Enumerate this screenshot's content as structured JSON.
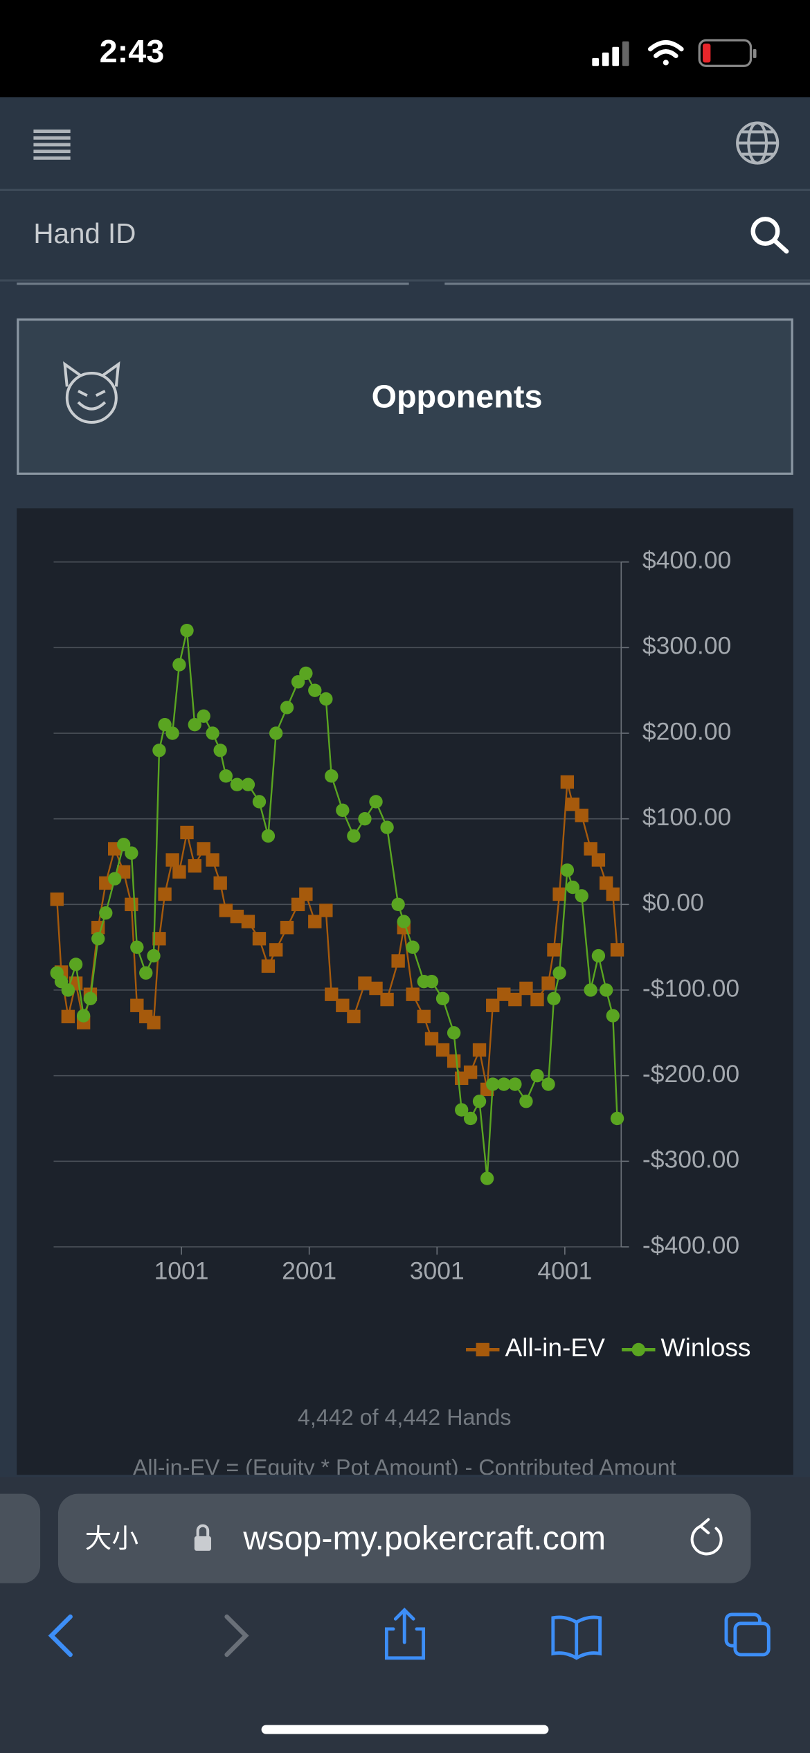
{
  "status": {
    "time": "2:43"
  },
  "search": {
    "placeholder": "Hand ID"
  },
  "opponents": {
    "label": "Opponents"
  },
  "chart_data": {
    "type": "line",
    "grid": true,
    "x": [
      27,
      61,
      114,
      175,
      235,
      288,
      349,
      409,
      479,
      549,
      610,
      653,
      723,
      784,
      827,
      871,
      931,
      984,
      1044,
      1105,
      1175,
      1245,
      1305,
      1349,
      1436,
      1523,
      1610,
      1680,
      1741,
      1827,
      1914,
      1975,
      2045,
      2132,
      2175,
      2262,
      2349,
      2436,
      2523,
      2610,
      2697,
      2741,
      2811,
      2898,
      2959,
      3046,
      3133,
      3193,
      3263,
      3333,
      3393,
      3437,
      3524,
      3611,
      3698,
      3785,
      3872,
      3915,
      3959,
      4020,
      4063,
      4133,
      4203,
      4264,
      4325,
      4377,
      4411
    ],
    "series": [
      {
        "name": "All-in-EV",
        "color": "#a65a0c",
        "marker": "square",
        "values": [
          6,
          -79,
          -131,
          -92,
          -138,
          -105,
          -27,
          25,
          65,
          38,
          0,
          -118,
          -131,
          -138,
          -40,
          12,
          52,
          38,
          84,
          45,
          65,
          52,
          25,
          -7,
          -14,
          -20,
          -40,
          -72,
          -53,
          -27,
          0,
          12,
          -20,
          -7,
          -105,
          -118,
          -131,
          -92,
          -98,
          -111,
          -66,
          -27,
          -105,
          -131,
          -157,
          -170,
          -183,
          -203,
          -196,
          -170,
          -216,
          -118,
          -105,
          -111,
          -98,
          -111,
          -92,
          -53,
          12,
          143,
          117,
          104,
          65,
          52,
          25,
          12,
          -53
        ]
      },
      {
        "name": "Winloss",
        "color": "#5aa521",
        "marker": "circle",
        "values": [
          -80,
          -90,
          -100,
          -70,
          -130,
          -110,
          -40,
          -10,
          30,
          70,
          60,
          -50,
          -80,
          -60,
          180,
          210,
          200,
          280,
          320,
          210,
          220,
          200,
          180,
          150,
          140,
          140,
          120,
          80,
          200,
          230,
          260,
          270,
          250,
          240,
          150,
          110,
          80,
          100,
          120,
          90,
          0,
          -20,
          -50,
          -90,
          -90,
          -110,
          -150,
          -240,
          -250,
          -230,
          -320,
          -210,
          -210,
          -210,
          -230,
          -200,
          -210,
          -110,
          -80,
          40,
          20,
          10,
          -100,
          -60,
          -100,
          -130,
          -250
        ]
      }
    ],
    "xlim": [
      1,
      4442
    ],
    "xticks": [
      1001,
      2001,
      3001,
      4001
    ],
    "ylim": [
      -400,
      400
    ],
    "yticks": [
      {
        "value": 400,
        "label": "$400.00"
      },
      {
        "value": 300,
        "label": "$300.00"
      },
      {
        "value": 200,
        "label": "$200.00"
      },
      {
        "value": 100,
        "label": "$100.00"
      },
      {
        "value": 0,
        "label": "$0.00"
      },
      {
        "value": -100,
        "label": "-$100.00"
      },
      {
        "value": -200,
        "label": "-$200.00"
      },
      {
        "value": -300,
        "label": "-$300.00"
      },
      {
        "value": -400,
        "label": "-$400.00"
      }
    ],
    "hands_note": "4,442 of 4,442 Hands",
    "formula_note": "All-in-EV = (Equity * Pot Amount) - Contributed Amount"
  },
  "browser": {
    "size_button": "大小",
    "url": "wsop-my.pokercraft.com"
  }
}
